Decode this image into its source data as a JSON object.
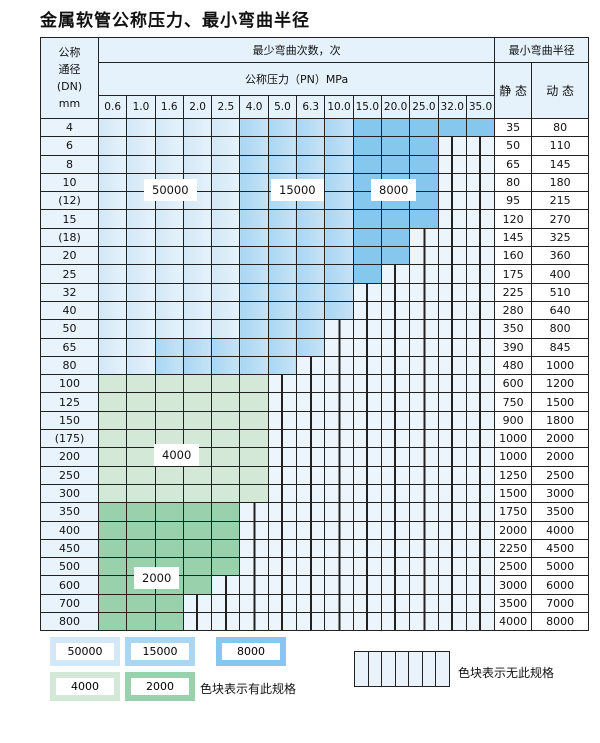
{
  "title": "金属软管公称压力、最小弯曲半径",
  "header": {
    "dn_label_lines": [
      "公称",
      "通径",
      "(DN)",
      "mm"
    ],
    "cycles_label": "最少弯曲次数，次",
    "pressure_label": "公称压力（PN）MPa",
    "radius_label": "最小弯曲半径",
    "static_label": "静 态",
    "dynamic_label": "动 态",
    "pressures": [
      "0.6",
      "1.0",
      "1.6",
      "2.0",
      "2.5",
      "4.0",
      "5.0",
      "6.3",
      "10.0",
      "15.0",
      "20.0",
      "25.0",
      "32.0",
      "35.0"
    ]
  },
  "categories": {
    "A": {
      "cycles": "50000",
      "color": "#d2e8f7"
    },
    "B": {
      "cycles": "15000",
      "color": "#a9d6f3"
    },
    "C": {
      "cycles": "8000",
      "color": "#86c7ee"
    },
    "D": {
      "cycles": "4000",
      "color": "#d3e8d6"
    },
    "E": {
      "cycles": "2000",
      "color": "#99d1ac"
    },
    "N": {
      "cycles": "",
      "color": "#edf5fc"
    }
  },
  "rows": [
    {
      "dn": "4",
      "static": "35",
      "dynamic": "80",
      "cells": "AAAAABBBBCCCCC"
    },
    {
      "dn": "6",
      "static": "50",
      "dynamic": "110",
      "cells": "AAAAABBBBCCCNN"
    },
    {
      "dn": "8",
      "static": "65",
      "dynamic": "145",
      "cells": "AAAAABBBBCCCNN"
    },
    {
      "dn": "10",
      "static": "80",
      "dynamic": "180",
      "cells": "AAAAABBBBCCCNN"
    },
    {
      "dn": "(12)",
      "static": "95",
      "dynamic": "215",
      "cells": "AAAAABBBBCCCNN"
    },
    {
      "dn": "15",
      "static": "120",
      "dynamic": "270",
      "cells": "AAAAABBBBCCCNN"
    },
    {
      "dn": "(18)",
      "static": "145",
      "dynamic": "325",
      "cells": "AAAAABBBBCCNNN"
    },
    {
      "dn": "20",
      "static": "160",
      "dynamic": "360",
      "cells": "AAAAABBBBCCNNN"
    },
    {
      "dn": "25",
      "static": "175",
      "dynamic": "400",
      "cells": "AAAAABBBBCNNNN"
    },
    {
      "dn": "32",
      "static": "225",
      "dynamic": "510",
      "cells": "AAAAABBBBNNNNN"
    },
    {
      "dn": "40",
      "static": "280",
      "dynamic": "640",
      "cells": "AAAAABBBBNNNNN"
    },
    {
      "dn": "50",
      "static": "350",
      "dynamic": "800",
      "cells": "AAAAABBBNNNNNN"
    },
    {
      "dn": "65",
      "static": "390",
      "dynamic": "845",
      "cells": "AABBBBBBNNNNNN"
    },
    {
      "dn": "80",
      "static": "480",
      "dynamic": "1000",
      "cells": "AABBBBBNNNNNNN"
    },
    {
      "dn": "100",
      "static": "600",
      "dynamic": "1200",
      "cells": "DDDDDDNNNNNNNN"
    },
    {
      "dn": "125",
      "static": "750",
      "dynamic": "1500",
      "cells": "DDDDDDNNNNNNNN"
    },
    {
      "dn": "150",
      "static": "900",
      "dynamic": "1800",
      "cells": "DDDDDDNNNNNNNN"
    },
    {
      "dn": "(175)",
      "static": "1000",
      "dynamic": "2000",
      "cells": "DDDDDDNNNNNNNN"
    },
    {
      "dn": "200",
      "static": "1000",
      "dynamic": "2000",
      "cells": "DDDDDDNNNNNNNN"
    },
    {
      "dn": "250",
      "static": "1250",
      "dynamic": "2500",
      "cells": "DDDDDDNNNNNNNN"
    },
    {
      "dn": "300",
      "static": "1500",
      "dynamic": "3000",
      "cells": "DDDDDDNNNNNNNN"
    },
    {
      "dn": "350",
      "static": "1750",
      "dynamic": "3500",
      "cells": "EEEEENNNNNNNNN"
    },
    {
      "dn": "400",
      "static": "2000",
      "dynamic": "4000",
      "cells": "EEEEENNNNNNNNN"
    },
    {
      "dn": "450",
      "static": "2250",
      "dynamic": "4500",
      "cells": "EEEEENNNNNNNNN"
    },
    {
      "dn": "500",
      "static": "2500",
      "dynamic": "5000",
      "cells": "EEEEENNNNNNNNN"
    },
    {
      "dn": "600",
      "static": "3000",
      "dynamic": "6000",
      "cells": "EEEENNNNNNNNNN"
    },
    {
      "dn": "700",
      "static": "3500",
      "dynamic": "7000",
      "cells": "EEENNNNNNNNNNN"
    },
    {
      "dn": "800",
      "static": "4000",
      "dynamic": "8000",
      "cells": "EEENNNNNNNNNNN"
    }
  ],
  "legend": {
    "available_text": "色块表示有此规格",
    "unavailable_text": "色块表示无此规格"
  }
}
